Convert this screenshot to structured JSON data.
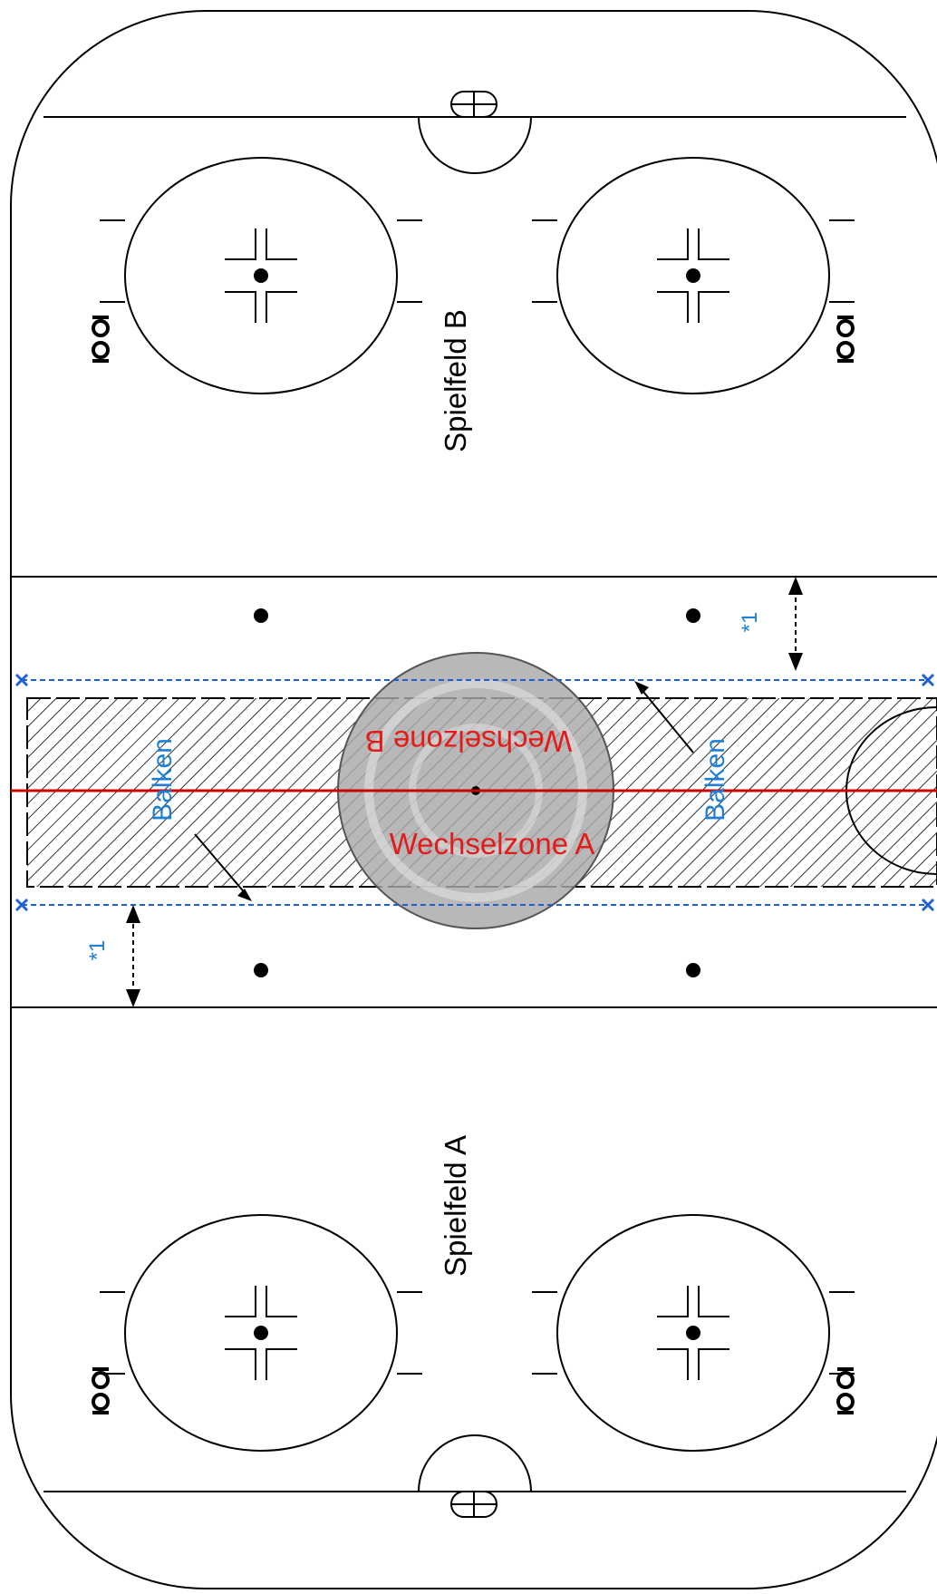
{
  "labels": {
    "spielfeld_b": "Spielfeld B",
    "spielfeld_a": "Spielfeld A",
    "wechselzone_a": "Wechselzone A",
    "wechselzone_b": "Wechselzone B",
    "balken": "Balken",
    "marker_1": "*1"
  },
  "colors": {
    "line": "#000000",
    "red_line": "#cc0000",
    "zone_text": "#e31b1b",
    "annotation_blue": "#1e7fd6",
    "logo_gray": "#9a9a9a"
  }
}
